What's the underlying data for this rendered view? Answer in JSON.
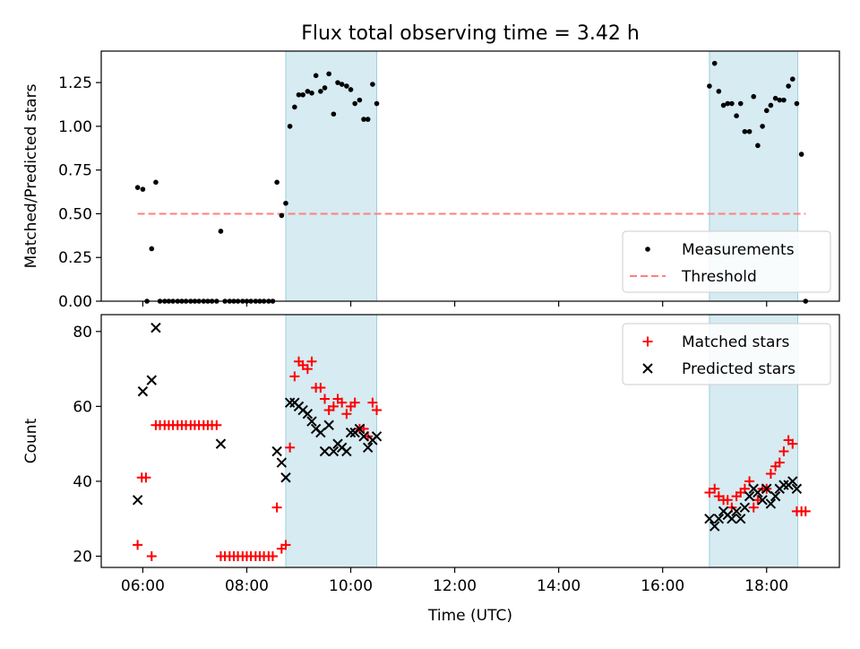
{
  "chart_data": [
    {
      "type": "scatter",
      "title": "Flux total observing time = 3.42 h",
      "xlabel": "",
      "ylabel": "Matched/Predicted stars",
      "xlim": [
        5.2,
        19.4
      ],
      "ylim": [
        0,
        1.43
      ],
      "yticks": [
        "0.00",
        "0.25",
        "0.50",
        "0.75",
        "1.00",
        "1.25"
      ],
      "ytick_values": [
        0,
        0.25,
        0.5,
        0.75,
        1.0,
        1.25
      ],
      "xtick_values": [
        6,
        8,
        10,
        12,
        14,
        16,
        18
      ],
      "shaded_spans": [
        [
          8.75,
          10.5
        ],
        [
          16.9,
          18.6
        ]
      ],
      "threshold": {
        "name": "Threshold",
        "value": 0.5,
        "x_range": [
          5.9,
          18.75
        ],
        "color": "#ff7f7f"
      },
      "legend": {
        "placement": "lower-right",
        "entries": [
          "Measurements",
          "Threshold"
        ]
      },
      "series": [
        {
          "name": "Measurements",
          "color": "#000000",
          "x": [
            5.9,
            6.0,
            6.08,
            6.17,
            6.25,
            6.33,
            6.42,
            6.5,
            6.58,
            6.67,
            6.75,
            6.83,
            6.92,
            7.0,
            7.08,
            7.17,
            7.25,
            7.33,
            7.42,
            7.5,
            7.58,
            7.67,
            7.75,
            7.83,
            7.92,
            8.0,
            8.08,
            8.17,
            8.25,
            8.33,
            8.42,
            8.5,
            8.58,
            8.67,
            8.75,
            8.83,
            8.92,
            9.0,
            9.08,
            9.17,
            9.25,
            9.33,
            9.42,
            9.5,
            9.58,
            9.67,
            9.75,
            9.83,
            9.92,
            10.0,
            10.08,
            10.17,
            10.25,
            10.33,
            10.42,
            10.5,
            16.9,
            17.0,
            17.08,
            17.17,
            17.25,
            17.33,
            17.42,
            17.5,
            17.58,
            17.67,
            17.75,
            17.83,
            17.92,
            18.0,
            18.08,
            18.17,
            18.25,
            18.33,
            18.42,
            18.5,
            18.58,
            18.67,
            18.75
          ],
          "y": [
            0.65,
            0.64,
            0.0,
            0.3,
            0.68,
            0.0,
            0.0,
            0.0,
            0.0,
            0.0,
            0.0,
            0.0,
            0.0,
            0.0,
            0.0,
            0.0,
            0.0,
            0.0,
            0.0,
            0.4,
            0.0,
            0.0,
            0.0,
            0.0,
            0.0,
            0.0,
            0.0,
            0.0,
            0.0,
            0.0,
            0.0,
            0.0,
            0.68,
            0.49,
            0.56,
            1.0,
            1.11,
            1.18,
            1.18,
            1.2,
            1.19,
            1.29,
            1.2,
            1.22,
            1.3,
            1.07,
            1.25,
            1.24,
            1.23,
            1.21,
            1.13,
            1.15,
            1.04,
            1.04,
            1.24,
            1.13,
            1.23,
            1.36,
            1.2,
            1.12,
            1.13,
            1.13,
            1.06,
            1.13,
            0.97,
            0.97,
            1.17,
            0.89,
            1.0,
            1.09,
            1.12,
            1.16,
            1.15,
            1.15,
            1.23,
            1.27,
            1.13,
            0.84,
            0.0
          ]
        }
      ]
    },
    {
      "type": "scatter",
      "title": "",
      "xlabel": "Time (UTC)",
      "ylabel": "Count",
      "xlim": [
        5.2,
        19.4
      ],
      "ylim": [
        17,
        84.5
      ],
      "yticks": [
        "20",
        "40",
        "60",
        "80"
      ],
      "ytick_values": [
        20,
        40,
        60,
        80
      ],
      "xticks": [
        "06:00",
        "08:00",
        "10:00",
        "12:00",
        "14:00",
        "16:00",
        "18:00"
      ],
      "xtick_values": [
        6,
        8,
        10,
        12,
        14,
        16,
        18
      ],
      "shaded_spans": [
        [
          8.75,
          10.5
        ],
        [
          16.9,
          18.6
        ]
      ],
      "legend": {
        "placement": "upper-right",
        "entries": [
          "Matched stars",
          "Predicted stars"
        ]
      },
      "series": [
        {
          "name": "Matched stars",
          "marker": "plus",
          "color": "#ff0000",
          "x": [
            5.9,
            5.98,
            6.06,
            6.17,
            6.25,
            6.33,
            6.42,
            6.5,
            6.58,
            6.67,
            6.75,
            6.83,
            6.92,
            7.0,
            7.08,
            7.17,
            7.25,
            7.33,
            7.42,
            7.5,
            7.58,
            7.67,
            7.75,
            7.83,
            7.92,
            8.0,
            8.08,
            8.17,
            8.25,
            8.33,
            8.42,
            8.5,
            8.58,
            8.67,
            8.75,
            8.83,
            8.92,
            9.0,
            9.08,
            9.17,
            9.25,
            9.33,
            9.42,
            9.5,
            9.58,
            9.67,
            9.75,
            9.83,
            9.92,
            10.0,
            10.08,
            10.17,
            10.25,
            10.33,
            10.42,
            10.5,
            16.9,
            17.0,
            17.08,
            17.17,
            17.25,
            17.33,
            17.42,
            17.5,
            17.58,
            17.67,
            17.75,
            17.83,
            17.92,
            18.0,
            18.08,
            18.17,
            18.25,
            18.33,
            18.42,
            18.5,
            18.58,
            18.67,
            18.75
          ],
          "y": [
            23,
            41,
            41,
            20,
            55,
            55,
            55,
            55,
            55,
            55,
            55,
            55,
            55,
            55,
            55,
            55,
            55,
            55,
            55,
            20,
            20,
            20,
            20,
            20,
            20,
            20,
            20,
            20,
            20,
            20,
            20,
            20,
            33,
            22,
            23,
            49,
            68,
            72,
            71,
            70,
            72,
            65,
            65,
            62,
            59,
            60,
            62,
            61,
            58,
            60,
            61,
            54,
            54,
            52,
            61,
            59,
            37,
            38,
            36,
            35,
            35,
            33,
            36,
            37,
            38,
            40,
            33,
            35,
            38,
            38,
            42,
            44,
            45,
            48,
            51,
            50,
            32,
            32,
            32
          ]
        },
        {
          "name": "Predicted stars",
          "marker": "x",
          "color": "#000000",
          "x": [
            5.9,
            6.0,
            6.17,
            6.25,
            7.5,
            8.58,
            8.67,
            8.75,
            8.83,
            8.92,
            9.0,
            9.08,
            9.17,
            9.25,
            9.33,
            9.42,
            9.5,
            9.58,
            9.67,
            9.75,
            9.83,
            9.92,
            10.0,
            10.08,
            10.17,
            10.25,
            10.33,
            10.42,
            10.5,
            16.9,
            17.0,
            17.08,
            17.17,
            17.25,
            17.33,
            17.42,
            17.5,
            17.58,
            17.67,
            17.75,
            17.83,
            17.92,
            18.0,
            18.08,
            18.17,
            18.25,
            18.33,
            18.42,
            18.5,
            18.58
          ],
          "y": [
            35,
            64,
            67,
            81,
            50,
            48,
            45,
            41,
            61,
            61,
            60,
            59,
            58,
            56,
            54,
            53,
            48,
            55,
            48,
            50,
            49,
            48,
            53,
            53,
            54,
            52,
            49,
            51,
            52,
            30,
            28,
            30,
            32,
            31,
            30,
            32,
            30,
            33,
            36,
            38,
            37,
            35,
            38,
            34,
            36,
            38,
            39,
            39,
            40,
            38
          ]
        }
      ]
    }
  ]
}
